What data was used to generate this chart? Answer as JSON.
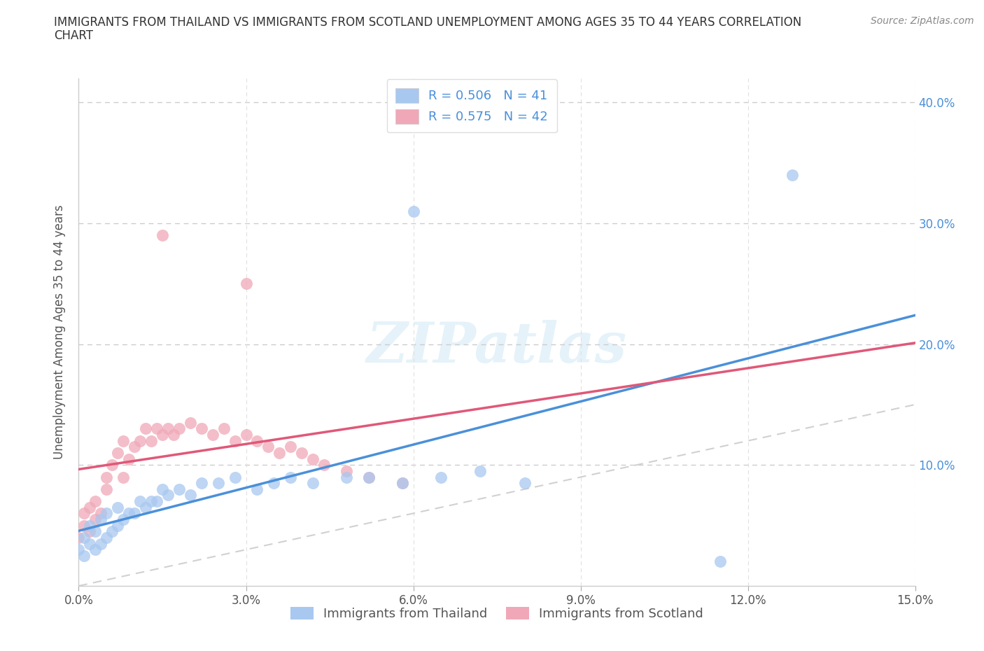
{
  "title_line1": "IMMIGRANTS FROM THAILAND VS IMMIGRANTS FROM SCOTLAND UNEMPLOYMENT AMONG AGES 35 TO 44 YEARS CORRELATION",
  "title_line2": "CHART",
  "source": "Source: ZipAtlas.com",
  "ylabel": "Unemployment Among Ages 35 to 44 years",
  "xlim": [
    0.0,
    0.15
  ],
  "ylim": [
    0.0,
    0.42
  ],
  "xtick_vals": [
    0.0,
    0.03,
    0.06,
    0.09,
    0.12,
    0.15
  ],
  "xtick_labels": [
    "0.0%",
    "3.0%",
    "6.0%",
    "9.0%",
    "12.0%",
    "15.0%"
  ],
  "ytick_vals": [
    0.0,
    0.1,
    0.2,
    0.3,
    0.4
  ],
  "ytick_labels": [
    "",
    "10.0%",
    "20.0%",
    "30.0%",
    "40.0%"
  ],
  "R_thailand": 0.506,
  "N_thailand": 41,
  "R_scotland": 0.575,
  "N_scotland": 42,
  "color_thailand": "#a8c8f0",
  "color_scotland": "#f0a8b8",
  "line_color_thailand": "#4a90d9",
  "line_color_scotland": "#e05878",
  "diagonal_color": "#cccccc",
  "watermark": "ZIPatlas",
  "legend_label_thailand": "Immigrants from Thailand",
  "legend_label_scotland": "Immigrants from Scotland",
  "thailand_x": [
    0.0,
    0.001,
    0.001,
    0.002,
    0.002,
    0.003,
    0.003,
    0.004,
    0.004,
    0.005,
    0.005,
    0.006,
    0.007,
    0.007,
    0.008,
    0.009,
    0.01,
    0.011,
    0.012,
    0.013,
    0.014,
    0.015,
    0.016,
    0.018,
    0.02,
    0.022,
    0.025,
    0.028,
    0.032,
    0.035,
    0.038,
    0.042,
    0.048,
    0.052,
    0.058,
    0.065,
    0.072,
    0.08,
    0.06,
    0.115,
    0.128
  ],
  "thailand_y": [
    0.03,
    0.025,
    0.04,
    0.035,
    0.05,
    0.03,
    0.045,
    0.035,
    0.055,
    0.04,
    0.06,
    0.045,
    0.05,
    0.065,
    0.055,
    0.06,
    0.06,
    0.07,
    0.065,
    0.07,
    0.07,
    0.08,
    0.075,
    0.08,
    0.075,
    0.085,
    0.085,
    0.09,
    0.08,
    0.085,
    0.09,
    0.085,
    0.09,
    0.09,
    0.085,
    0.09,
    0.095,
    0.085,
    0.31,
    0.02,
    0.34
  ],
  "scotland_x": [
    0.0,
    0.001,
    0.001,
    0.002,
    0.002,
    0.003,
    0.003,
    0.004,
    0.005,
    0.005,
    0.006,
    0.007,
    0.008,
    0.008,
    0.009,
    0.01,
    0.011,
    0.012,
    0.013,
    0.014,
    0.015,
    0.016,
    0.017,
    0.018,
    0.02,
    0.022,
    0.024,
    0.026,
    0.028,
    0.03,
    0.032,
    0.034,
    0.036,
    0.038,
    0.04,
    0.042,
    0.044,
    0.048,
    0.052,
    0.058,
    0.015,
    0.03
  ],
  "scotland_y": [
    0.04,
    0.05,
    0.06,
    0.045,
    0.065,
    0.055,
    0.07,
    0.06,
    0.08,
    0.09,
    0.1,
    0.11,
    0.09,
    0.12,
    0.105,
    0.115,
    0.12,
    0.13,
    0.12,
    0.13,
    0.125,
    0.13,
    0.125,
    0.13,
    0.135,
    0.13,
    0.125,
    0.13,
    0.12,
    0.125,
    0.12,
    0.115,
    0.11,
    0.115,
    0.11,
    0.105,
    0.1,
    0.095,
    0.09,
    0.085,
    0.29,
    0.25
  ]
}
